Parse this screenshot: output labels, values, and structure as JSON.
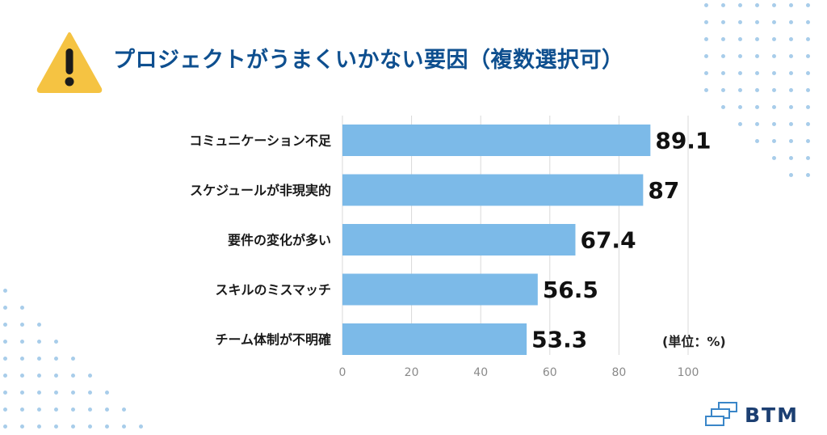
{
  "title": "プロジェクトがうまくいかない要因（複数選択可）",
  "unit_label": "(単位：%)",
  "logo_text": "BTM",
  "icons": {
    "warning": "warning-icon",
    "logo": "btm-logo-icon"
  },
  "colors": {
    "bar": "#7cbae8",
    "title": "#0e4f8f",
    "accent_icon": "#f5c342",
    "dots": "#a8cdea",
    "logo": "#1c3f72"
  },
  "chart_data": {
    "type": "bar",
    "orientation": "horizontal",
    "title": "プロジェクトがうまくいかない要因（複数選択可）",
    "categories": [
      "コミュニケーション不足",
      "スケジュールが非現実的",
      "要件の変化が多い",
      "スキルのミスマッチ",
      "チーム体制が不明確"
    ],
    "values": [
      89.1,
      87,
      67.4,
      56.5,
      53.3
    ],
    "value_labels": [
      "89.1",
      "87",
      "67.4",
      "56.5",
      "53.3"
    ],
    "xlim": [
      0,
      100
    ],
    "xticks": [
      "0",
      "20",
      "40",
      "60",
      "80",
      "100"
    ],
    "grid": true,
    "xlabel": "",
    "ylabel": ""
  }
}
